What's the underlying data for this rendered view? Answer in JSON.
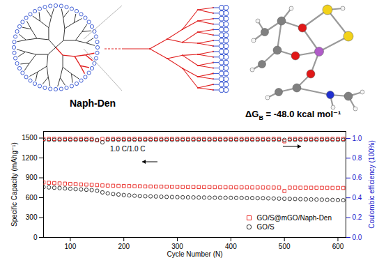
{
  "figure": {
    "label": "Naph-Den",
    "energy": {
      "symbol": "ΔG",
      "subscript": "B",
      "operator": "=",
      "value": {
        "value": -48.0,
        "label": "-48.0"
      },
      "unit": "kcal mol⁻¹"
    }
  },
  "chart_data": {
    "type": "scatter",
    "xlabel": "Cycle Number (N)",
    "ylabel": "Specific Capacity (mAhg⁻¹)",
    "y2label": "Coulombic efficiency (100%)",
    "annotations": [
      "1.0 C/1.0 C"
    ],
    "legend": "lower right",
    "grid": false,
    "xlim": [
      50,
      615
    ],
    "xticks": [
      100,
      200,
      300,
      400,
      500,
      600
    ],
    "ylim": [
      0,
      1600
    ],
    "yticks": [
      0,
      300,
      600,
      900,
      1200,
      1500
    ],
    "y2lim": [
      0,
      1.07
    ],
    "y2ticks": [
      {
        "value": 0,
        "label": "0.0"
      },
      {
        "value": 0.2,
        "label": "0.2"
      },
      {
        "value": 0.4,
        "label": "0.4"
      },
      {
        "value": 0.6,
        "label": "0.6"
      },
      {
        "value": 0.8,
        "label": "0.8"
      },
      {
        "value": 1.0,
        "label": "1.0"
      }
    ],
    "x": [
      50,
      60,
      70,
      80,
      90,
      100,
      110,
      120,
      130,
      140,
      150,
      160,
      170,
      180,
      190,
      200,
      210,
      220,
      230,
      240,
      250,
      260,
      270,
      280,
      290,
      300,
      310,
      320,
      330,
      340,
      350,
      360,
      370,
      380,
      390,
      400,
      410,
      420,
      430,
      440,
      450,
      460,
      470,
      480,
      490,
      500,
      510,
      520,
      530,
      540,
      550,
      560,
      570,
      580,
      590,
      600,
      610
    ],
    "series": [
      {
        "name": "GO/S@mGO/Naph-Den",
        "color": "#e8201c",
        "marker": "square",
        "axis": "y",
        "values": [
          830,
          825,
          820,
          815,
          812,
          808,
          805,
          800,
          798,
          795,
          790,
          785,
          782,
          780,
          778,
          776,
          775,
          773,
          772,
          770,
          769,
          768,
          767,
          766,
          765,
          764,
          763,
          762,
          762,
          761,
          760,
          760,
          759,
          758,
          758,
          757,
          757,
          756,
          756,
          755,
          755,
          754,
          754,
          753,
          753,
          700,
          752,
          752,
          751,
          751,
          750,
          750,
          749,
          749,
          748,
          748,
          747
        ]
      },
      {
        "name": "GO/S",
        "color": "#222222",
        "marker": "circle",
        "axis": "y",
        "values": [
          760,
          755,
          750,
          745,
          740,
          735,
          730,
          725,
          720,
          715,
          705,
          680,
          665,
          655,
          648,
          640,
          635,
          630,
          625,
          622,
          620,
          618,
          615,
          612,
          610,
          608,
          606,
          605,
          604,
          603,
          602,
          600,
          600,
          599,
          598,
          598,
          597,
          596,
          595,
          594,
          593,
          592,
          590,
          588,
          586,
          584,
          582,
          580,
          578,
          576,
          574,
          572,
          570,
          568,
          566,
          564,
          562
        ]
      },
      {
        "name": "GO/S@mGO/Naph-Den",
        "color": "#e8201c",
        "marker": "square",
        "axis": "y2",
        "values": [
          0.995,
          0.995,
          0.995,
          0.995,
          0.995,
          0.995,
          0.995,
          0.995,
          0.995,
          0.995,
          0.98,
          0.995,
          0.995,
          0.995,
          0.995,
          0.995,
          0.995,
          0.995,
          0.995,
          0.995,
          0.995,
          0.995,
          0.995,
          0.995,
          0.995,
          0.995,
          0.995,
          0.995,
          0.995,
          0.995,
          0.995,
          0.995,
          0.995,
          0.995,
          0.995,
          0.995,
          0.995,
          0.995,
          0.995,
          0.995,
          0.995,
          0.995,
          0.995,
          0.995,
          0.995,
          0.97,
          0.995,
          0.995,
          0.995,
          0.995,
          0.995,
          0.995,
          0.995,
          0.995,
          0.995,
          0.995,
          0.995
        ]
      },
      {
        "name": "GO/S",
        "color": "#222222",
        "marker": "circle",
        "axis": "y2",
        "values": [
          0.985,
          0.985,
          0.985,
          0.985,
          0.985,
          0.985,
          0.985,
          0.985,
          0.985,
          0.985,
          0.985,
          0.96,
          0.985,
          0.985,
          0.985,
          0.985,
          0.985,
          0.985,
          0.985,
          0.985,
          0.985,
          0.985,
          0.985,
          0.985,
          0.985,
          0.985,
          0.985,
          0.985,
          0.985,
          0.985,
          0.985,
          0.985,
          0.985,
          0.985,
          0.985,
          0.985,
          0.985,
          0.985,
          0.985,
          0.985,
          0.985,
          0.985,
          0.985,
          0.985,
          0.985,
          0.985,
          0.985,
          0.985,
          0.985,
          0.985,
          0.985,
          0.985,
          0.985,
          0.985,
          0.985,
          0.985,
          0.985
        ]
      }
    ]
  }
}
